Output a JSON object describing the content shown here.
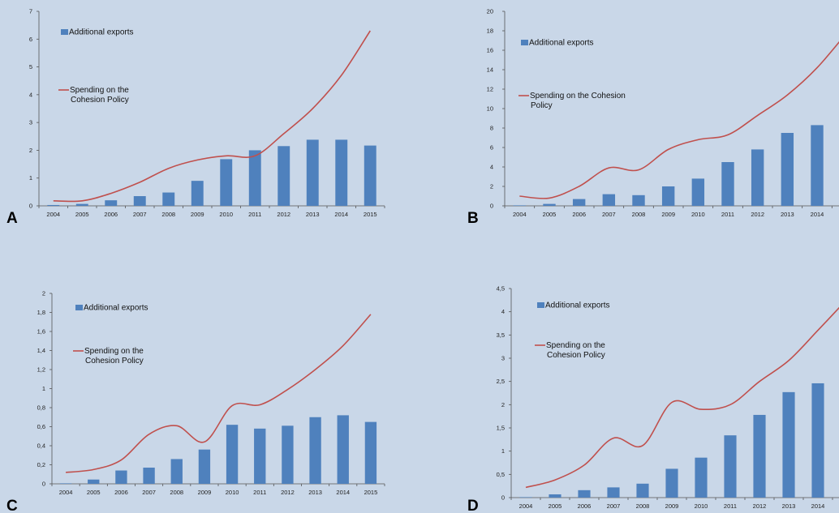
{
  "background": "#c9d7e8",
  "colors": {
    "bar": "#4f81bd",
    "line": "#c0504d",
    "axis": "#555555"
  },
  "chart_data": [
    {
      "panel_label": "A",
      "type": "bar+line",
      "categories": [
        "2004",
        "2005",
        "2006",
        "2007",
        "2008",
        "2009",
        "2010",
        "2011",
        "2012",
        "2013",
        "2014",
        "2015"
      ],
      "ylim": [
        0,
        7
      ],
      "yticks": [
        "0",
        "1",
        "2",
        "3",
        "4",
        "5",
        "6",
        "7"
      ],
      "legend": {
        "bar": "Additional exports",
        "line": [
          "Spending on the",
          "Cohesion Policy"
        ]
      },
      "series": [
        {
          "name": "Additional exports",
          "kind": "bar",
          "values": [
            0.03,
            0.07,
            0.2,
            0.35,
            0.48,
            0.9,
            1.68,
            2.0,
            2.15,
            2.38,
            2.38,
            2.17
          ]
        },
        {
          "name": "Spending on the Cohesion Policy",
          "kind": "line",
          "values": [
            0.18,
            0.18,
            0.45,
            0.85,
            1.35,
            1.65,
            1.8,
            1.8,
            2.6,
            3.5,
            4.7,
            6.3
          ]
        }
      ]
    },
    {
      "panel_label": "B",
      "type": "bar+line",
      "categories": [
        "2004",
        "2005",
        "2006",
        "2007",
        "2008",
        "2009",
        "2010",
        "2011",
        "2012",
        "2013",
        "2014",
        "2015"
      ],
      "ylim": [
        0,
        20
      ],
      "yticks": [
        "0",
        "2",
        "4",
        "6",
        "8",
        "10",
        "12",
        "14",
        "16",
        "18",
        "20"
      ],
      "legend": {
        "bar": "Additional exports",
        "line": [
          "Spending on the Cohesion",
          "Policy"
        ]
      },
      "series": [
        {
          "name": "Additional exports",
          "kind": "bar",
          "values": [
            0.05,
            0.2,
            0.7,
            1.2,
            1.1,
            2.0,
            2.8,
            4.5,
            5.8,
            7.5,
            8.3,
            8.4
          ]
        },
        {
          "name": "Spending on the Cohesion Policy",
          "kind": "line",
          "values": [
            1.0,
            0.8,
            2.0,
            3.9,
            3.7,
            5.8,
            6.8,
            7.3,
            9.3,
            11.4,
            14.2,
            17.8
          ]
        }
      ]
    },
    {
      "panel_label": "C",
      "type": "bar+line",
      "categories": [
        "2004",
        "2005",
        "2006",
        "2007",
        "2008",
        "2009",
        "2010",
        "2011",
        "2012",
        "2013",
        "2014",
        "2015"
      ],
      "ylim": [
        0,
        2
      ],
      "yticks": [
        "0",
        "0,2",
        "0,4",
        "0,6",
        "0,8",
        "1",
        "1,2",
        "1,4",
        "1,6",
        "1,8",
        "2"
      ],
      "legend": {
        "bar": "Additional exports",
        "line": [
          "Spending on the",
          "Cohesion Policy"
        ]
      },
      "series": [
        {
          "name": "Additional exports",
          "kind": "bar",
          "values": [
            0.005,
            0.045,
            0.14,
            0.17,
            0.26,
            0.36,
            0.62,
            0.58,
            0.61,
            0.7,
            0.72,
            0.65
          ]
        },
        {
          "name": "Spending on the Cohesion Policy",
          "kind": "line",
          "values": [
            0.12,
            0.15,
            0.25,
            0.52,
            0.61,
            0.44,
            0.82,
            0.83,
            0.99,
            1.2,
            1.45,
            1.78
          ]
        }
      ]
    },
    {
      "panel_label": "D",
      "type": "bar+line",
      "categories": [
        "2004",
        "2005",
        "2006",
        "2007",
        "2008",
        "2009",
        "2010",
        "2011",
        "2012",
        "2013",
        "2014",
        "2015"
      ],
      "ylim": [
        0,
        4.5
      ],
      "yticks": [
        "0",
        "0,5",
        "1",
        "1,5",
        "2",
        "2,5",
        "3",
        "3,5",
        "4",
        "4,5"
      ],
      "legend": {
        "bar": "Additional exports",
        "line": [
          "Spending on the",
          "Cohesion Policy"
        ]
      },
      "series": [
        {
          "name": "Additional exports",
          "kind": "bar",
          "values": [
            0.01,
            0.07,
            0.16,
            0.22,
            0.3,
            0.62,
            0.86,
            1.34,
            1.78,
            2.27,
            2.46,
            2.35
          ]
        },
        {
          "name": "Spending on the Cohesion Policy",
          "kind": "line",
          "values": [
            0.22,
            0.38,
            0.7,
            1.28,
            1.12,
            2.05,
            1.9,
            2.0,
            2.5,
            2.95,
            3.6,
            4.27
          ]
        }
      ]
    }
  ]
}
